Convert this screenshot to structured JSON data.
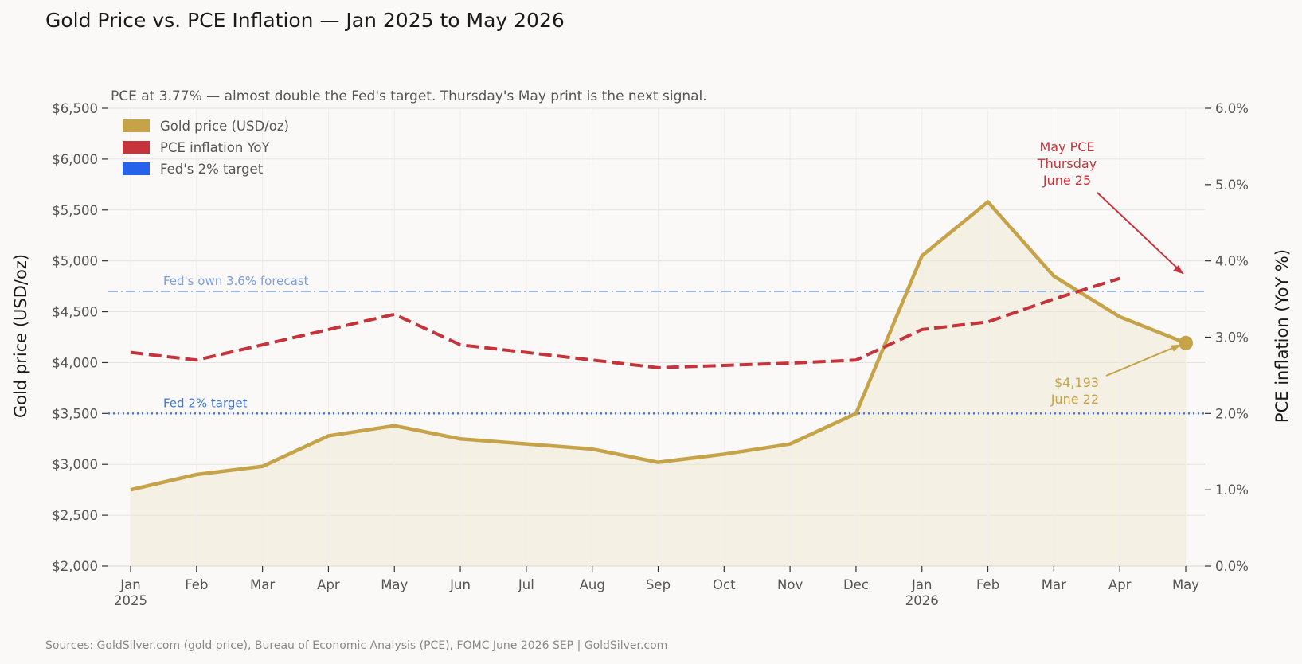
{
  "chart_data": {
    "type": "line",
    "title": "Gold Price vs. PCE Inflation — Jan 2025 to May 2026",
    "subtitle": "PCE at 3.77% — almost double the Fed's target. Thursday's May print is the next signal.",
    "source": "Sources: GoldSilver.com (gold price), Bureau of Economic Analysis (PCE), FOMC June 2026 SEP  |  GoldSilver.com",
    "x_ticks": [
      {
        "label": "Jan",
        "year": "2025"
      },
      {
        "label": "Feb",
        "year": ""
      },
      {
        "label": "Mar",
        "year": ""
      },
      {
        "label": "Apr",
        "year": ""
      },
      {
        "label": "May",
        "year": ""
      },
      {
        "label": "Jun",
        "year": ""
      },
      {
        "label": "Jul",
        "year": ""
      },
      {
        "label": "Aug",
        "year": ""
      },
      {
        "label": "Sep",
        "year": ""
      },
      {
        "label": "Oct",
        "year": ""
      },
      {
        "label": "Nov",
        "year": ""
      },
      {
        "label": "Dec",
        "year": ""
      },
      {
        "label": "Jan",
        "year": "2026"
      },
      {
        "label": "Feb",
        "year": ""
      },
      {
        "label": "Mar",
        "year": ""
      },
      {
        "label": "Apr",
        "year": ""
      },
      {
        "label": "May",
        "year": ""
      }
    ],
    "y_left": {
      "label": "Gold price (USD/oz)",
      "range": [
        2000,
        6500
      ],
      "ticks": [
        2000,
        2500,
        3000,
        3500,
        4000,
        4500,
        5000,
        5500,
        6000,
        6500
      ],
      "tick_labels": [
        "$2,000",
        "$2,500",
        "$3,000",
        "$3,500",
        "$4,000",
        "$4,500",
        "$5,000",
        "$5,500",
        "$6,000",
        "$6,500"
      ]
    },
    "y_right": {
      "label": "PCE inflation (YoY %)",
      "range": [
        0,
        6
      ],
      "ticks": [
        0,
        1,
        2,
        3,
        4,
        5,
        6
      ],
      "tick_labels": [
        "0.0%",
        "1.0%",
        "2.0%",
        "3.0%",
        "4.0%",
        "5.0%",
        "6.0%"
      ]
    },
    "grid": true,
    "legend_position": "top-left",
    "series": [
      {
        "name": "Gold price (USD/oz)",
        "axis": "left",
        "style": "solid-area",
        "color": "#c6a349",
        "values": [
          2750,
          2900,
          2980,
          3280,
          3380,
          3250,
          3200,
          3150,
          3020,
          3100,
          3200,
          3500,
          5050,
          5580,
          4850,
          4450,
          4193
        ]
      },
      {
        "name": "PCE inflation YoY",
        "axis": "right",
        "style": "dashed",
        "color": "#c7333b",
        "values": [
          2.8,
          2.7,
          2.9,
          3.1,
          3.3,
          2.9,
          2.8,
          2.7,
          2.6,
          2.63,
          2.66,
          2.7,
          3.1,
          3.2,
          3.5,
          3.77,
          null
        ]
      }
    ],
    "reference_lines": [
      {
        "legend_name": "Fed's 2% target",
        "label": "Fed 2% target",
        "axis": "right",
        "value": 2.0,
        "style": "dotted",
        "color": "#3f78d8"
      },
      {
        "label": "Fed's own 3.6% forecast",
        "axis": "right",
        "value": 3.6,
        "style": "dashdot",
        "color": "#7a9fe6"
      }
    ],
    "annotations": [
      {
        "lines": [
          "May PCE",
          "Thursday",
          "June 25"
        ],
        "color": "#c7333b"
      },
      {
        "lines": [
          "$4,193",
          "June 22"
        ],
        "color": "#c6a349"
      }
    ],
    "colors": {
      "gold": "#c6a349",
      "gold_fill": "#f5f0e4",
      "pce": "#c7333b",
      "target": "#2563eb",
      "target_line": "#3f78d8",
      "forecast": "#7a9fe6",
      "text": "#555555",
      "title": "#1a1a1a",
      "grid": "#e6e4e0"
    }
  }
}
